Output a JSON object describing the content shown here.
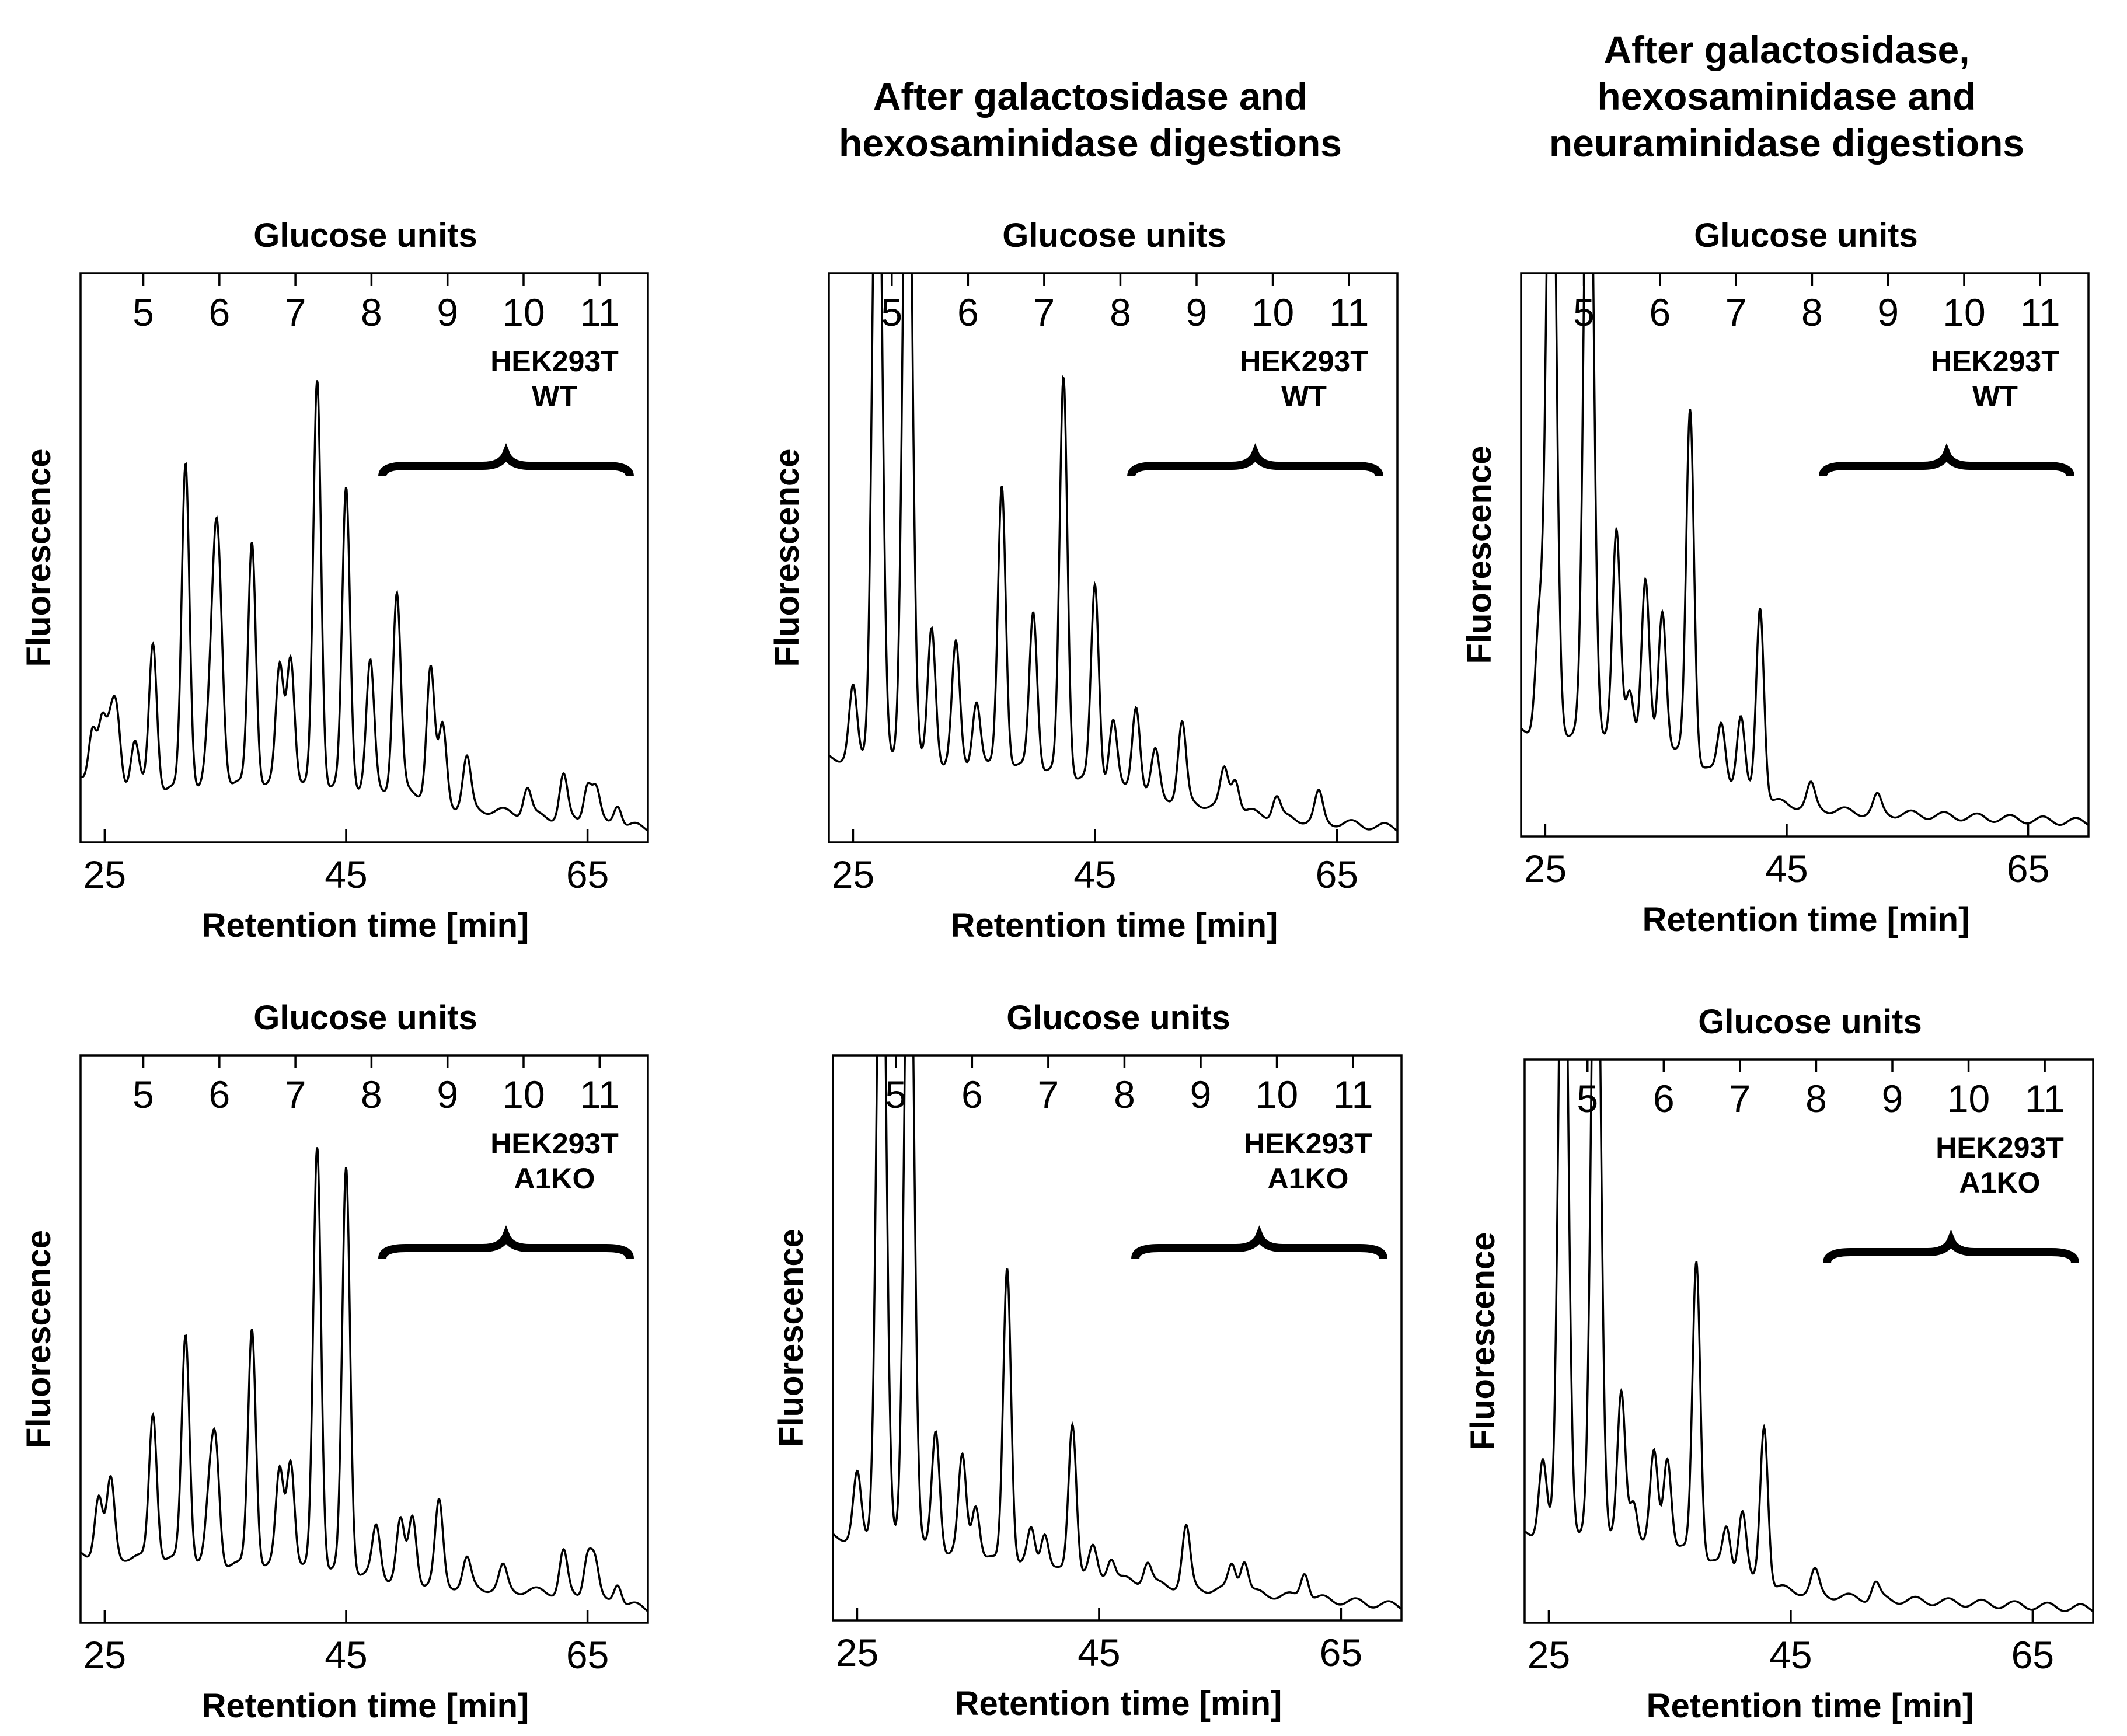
{
  "column_titles": [
    "",
    [
      "After galactosidase and",
      "hexosaminidase digestions"
    ],
    [
      "After galactosidase,",
      "hexosaminidase and",
      "neuraminidase digestions"
    ]
  ],
  "chart_data": [
    {
      "type": "line",
      "title": "Glucose units",
      "xlabel": "Retention time [min]",
      "ylabel": "Fluorescence",
      "xlim": [
        23,
        70
      ],
      "xticks": [
        25,
        45,
        65
      ],
      "top_axis_ticks": [
        5,
        6,
        7,
        8,
        9,
        10,
        11
      ],
      "top_axis_positions_min": [
        28.2,
        34.5,
        40.8,
        47.1,
        53.4,
        59.7,
        66.0
      ],
      "sample": [
        "HEK293T",
        "WT"
      ],
      "bracket_range_min": [
        48,
        68.5
      ],
      "series": [
        {
          "name": "HEK293T WT",
          "peaks": [
            [
              24,
              10
            ],
            [
              24.8,
              11
            ],
            [
              25.5,
              9
            ],
            [
              26,
              12
            ],
            [
              27.5,
              8
            ],
            [
              29,
              27
            ],
            [
              31.7,
              60
            ],
            [
              34.2,
              36
            ],
            [
              34.6,
              20
            ],
            [
              33.7,
              12
            ],
            [
              37.2,
              45
            ],
            [
              39.5,
              22
            ],
            [
              40.4,
              24
            ],
            [
              42.6,
              75
            ],
            [
              45,
              55
            ],
            [
              47,
              23
            ],
            [
              49.2,
              36
            ],
            [
              52,
              24
            ],
            [
              53,
              14
            ],
            [
              55,
              9
            ],
            [
              60,
              5
            ],
            [
              63,
              8
            ],
            [
              65,
              7
            ],
            [
              65.7,
              6
            ],
            [
              67.5,
              4
            ]
          ]
        }
      ],
      "baseline": [
        [
          23,
          10
        ],
        [
          30,
          8
        ],
        [
          36,
          9
        ],
        [
          50,
          8
        ],
        [
          54,
          5
        ],
        [
          62,
          3
        ],
        [
          70,
          1
        ]
      ],
      "ylim": [
        0,
        100
      ]
    },
    {
      "type": "line",
      "title": "Glucose units",
      "xlabel": "Retention time [min]",
      "ylabel": "Fluorescence",
      "xlim": [
        23,
        70
      ],
      "xticks": [
        25,
        45,
        65
      ],
      "top_axis_ticks": [
        5,
        6,
        7,
        8,
        9,
        10,
        11
      ],
      "top_axis_positions_min": [
        28.2,
        34.5,
        40.8,
        47.1,
        53.4,
        59.7,
        66.0
      ],
      "sample": [
        "HEK293T",
        "WT"
      ],
      "bracket_range_min": [
        48,
        68.5
      ],
      "series": [
        {
          "name": "HEK293T WT",
          "peaks": [
            [
              25,
              13
            ],
            [
              27,
              140
            ],
            [
              29.5,
              140
            ],
            [
              31.5,
              25
            ],
            [
              33.5,
              22
            ],
            [
              35.2,
              12
            ],
            [
              37.3,
              52
            ],
            [
              39.9,
              29
            ],
            [
              42.4,
              73
            ],
            [
              45,
              36
            ],
            [
              46.5,
              12
            ],
            [
              48.4,
              16
            ],
            [
              50,
              8
            ],
            [
              52.2,
              14
            ],
            [
              55.7,
              7
            ],
            [
              56.6,
              6
            ],
            [
              60,
              4
            ],
            [
              63.5,
              5
            ]
          ]
        }
      ],
      "baseline": [
        [
          23,
          14
        ],
        [
          30,
          13
        ],
        [
          40,
          12
        ],
        [
          50,
          7
        ],
        [
          60,
          3
        ],
        [
          70,
          1
        ]
      ],
      "ylim": [
        0,
        100
      ]
    },
    {
      "type": "line",
      "title": "Glucose units",
      "xlabel": "Retention time [min]",
      "ylabel": "Fluorescence",
      "xlim": [
        23,
        70
      ],
      "xticks": [
        25,
        45,
        65
      ],
      "top_axis_ticks": [
        5,
        6,
        7,
        8,
        9,
        10,
        11
      ],
      "top_axis_positions_min": [
        28.2,
        34.5,
        40.8,
        47.1,
        53.4,
        59.7,
        66.0
      ],
      "sample": [
        "HEK293T",
        "WT"
      ],
      "bracket_range_min": [
        48,
        68.5
      ],
      "series": [
        {
          "name": "HEK293T WT",
          "peaks": [
            [
              24.5,
              20
            ],
            [
              25.5,
              140
            ],
            [
              28.6,
              140
            ],
            [
              30.9,
              38
            ],
            [
              32,
              10
            ],
            [
              33.3,
              30
            ],
            [
              34.7,
              26
            ],
            [
              37,
              65
            ],
            [
              39.6,
              10
            ],
            [
              41.2,
              13
            ],
            [
              42.8,
              36
            ],
            [
              47,
              4
            ],
            [
              52.5,
              3
            ]
          ]
        }
      ],
      "baseline": [
        [
          23,
          18
        ],
        [
          30,
          17
        ],
        [
          36,
          14
        ],
        [
          43,
          5
        ],
        [
          50,
          3
        ],
        [
          60,
          2
        ],
        [
          70,
          1
        ]
      ],
      "ylim": [
        0,
        100
      ]
    },
    {
      "type": "line",
      "title": "Glucose units",
      "xlabel": "Retention time [min]",
      "ylabel": "Fluorescence",
      "xlim": [
        23,
        70
      ],
      "xticks": [
        25,
        45,
        65
      ],
      "top_axis_ticks": [
        5,
        6,
        7,
        8,
        9,
        10,
        11
      ],
      "top_axis_positions_min": [
        28.2,
        34.5,
        40.8,
        47.1,
        53.4,
        59.7,
        66.0
      ],
      "sample": [
        "HEK293T",
        "A1KO"
      ],
      "bracket_range_min": [
        48,
        68.5
      ],
      "series": [
        {
          "name": "HEK293T A1KO",
          "peaks": [
            [
              24.5,
              11
            ],
            [
              25.5,
              14
            ],
            [
              29,
              27
            ],
            [
              31.7,
              42
            ],
            [
              34.2,
              20
            ],
            [
              33.7,
              12
            ],
            [
              37.2,
              44
            ],
            [
              39.5,
              18
            ],
            [
              40.4,
              20
            ],
            [
              42.6,
              78
            ],
            [
              45,
              74
            ],
            [
              47.5,
              9
            ],
            [
              49.5,
              11
            ],
            [
              50.5,
              12
            ],
            [
              52.7,
              15
            ],
            [
              55,
              5
            ],
            [
              58,
              4
            ],
            [
              63,
              8
            ],
            [
              65,
              8
            ],
            [
              65.6,
              7
            ],
            [
              67.5,
              4
            ]
          ]
        }
      ],
      "baseline": [
        [
          23,
          11
        ],
        [
          30,
          10
        ],
        [
          36,
          9
        ],
        [
          45,
          8
        ],
        [
          50,
          6
        ],
        [
          55,
          5
        ],
        [
          62,
          4
        ],
        [
          70,
          1
        ]
      ],
      "ylim": [
        0,
        100
      ]
    },
    {
      "type": "line",
      "title": "Glucose units",
      "xlabel": "Retention time [min]",
      "ylabel": "Fluorescence",
      "xlim": [
        23,
        70
      ],
      "xticks": [
        25,
        45,
        65
      ],
      "top_axis_ticks": [
        5,
        6,
        7,
        8,
        9,
        10,
        11
      ],
      "top_axis_positions_min": [
        28.2,
        34.5,
        40.8,
        47.1,
        53.4,
        59.7,
        66.0
      ],
      "sample": [
        "HEK293T",
        "A1KO"
      ],
      "bracket_range_min": [
        48,
        68.5
      ],
      "series": [
        {
          "name": "HEK293T A1KO",
          "peaks": [
            [
              25,
              12
            ],
            [
              27,
              140
            ],
            [
              29.3,
              140
            ],
            [
              31.5,
              22
            ],
            [
              33.7,
              18
            ],
            [
              34.8,
              10
            ],
            [
              37.4,
              55
            ],
            [
              39.4,
              7
            ],
            [
              40.5,
              7
            ],
            [
              42.8,
              28
            ],
            [
              44.5,
              5
            ],
            [
              46,
              4
            ],
            [
              49,
              4
            ],
            [
              52.2,
              11
            ],
            [
              56,
              5
            ],
            [
              57,
              6
            ],
            [
              62,
              5
            ]
          ]
        }
      ],
      "baseline": [
        [
          23,
          14
        ],
        [
          30,
          12
        ],
        [
          40,
          8
        ],
        [
          50,
          5
        ],
        [
          60,
          3
        ],
        [
          70,
          1
        ]
      ],
      "ylim": [
        0,
        100
      ]
    },
    {
      "type": "line",
      "title": "Glucose units",
      "xlabel": "Retention time [min]",
      "ylabel": "Fluorescence",
      "xlim": [
        23,
        70
      ],
      "xticks": [
        25,
        45,
        65
      ],
      "top_axis_ticks": [
        5,
        6,
        7,
        8,
        9,
        10,
        11
      ],
      "top_axis_positions_min": [
        28.2,
        34.5,
        40.8,
        47.1,
        53.4,
        59.7,
        66.0
      ],
      "sample": [
        "HEK293T",
        "A1KO"
      ],
      "bracket_range_min": [
        48,
        68.5
      ],
      "series": [
        {
          "name": "HEK293T A1KO",
          "peaks": [
            [
              24.5,
              14
            ],
            [
              26.2,
              140
            ],
            [
              28.9,
              140
            ],
            [
              31,
              27
            ],
            [
              32,
              8
            ],
            [
              33.7,
              17
            ],
            [
              34.8,
              17
            ],
            [
              37.2,
              55
            ],
            [
              39.7,
              8
            ],
            [
              41,
              12
            ],
            [
              42.8,
              30
            ],
            [
              47,
              4
            ],
            [
              52,
              3
            ]
          ]
        }
      ],
      "baseline": [
        [
          23,
          15
        ],
        [
          30,
          14
        ],
        [
          36,
          12
        ],
        [
          43,
          5
        ],
        [
          50,
          3
        ],
        [
          60,
          2
        ],
        [
          70,
          1
        ]
      ],
      "ylim": [
        0,
        100
      ]
    }
  ]
}
